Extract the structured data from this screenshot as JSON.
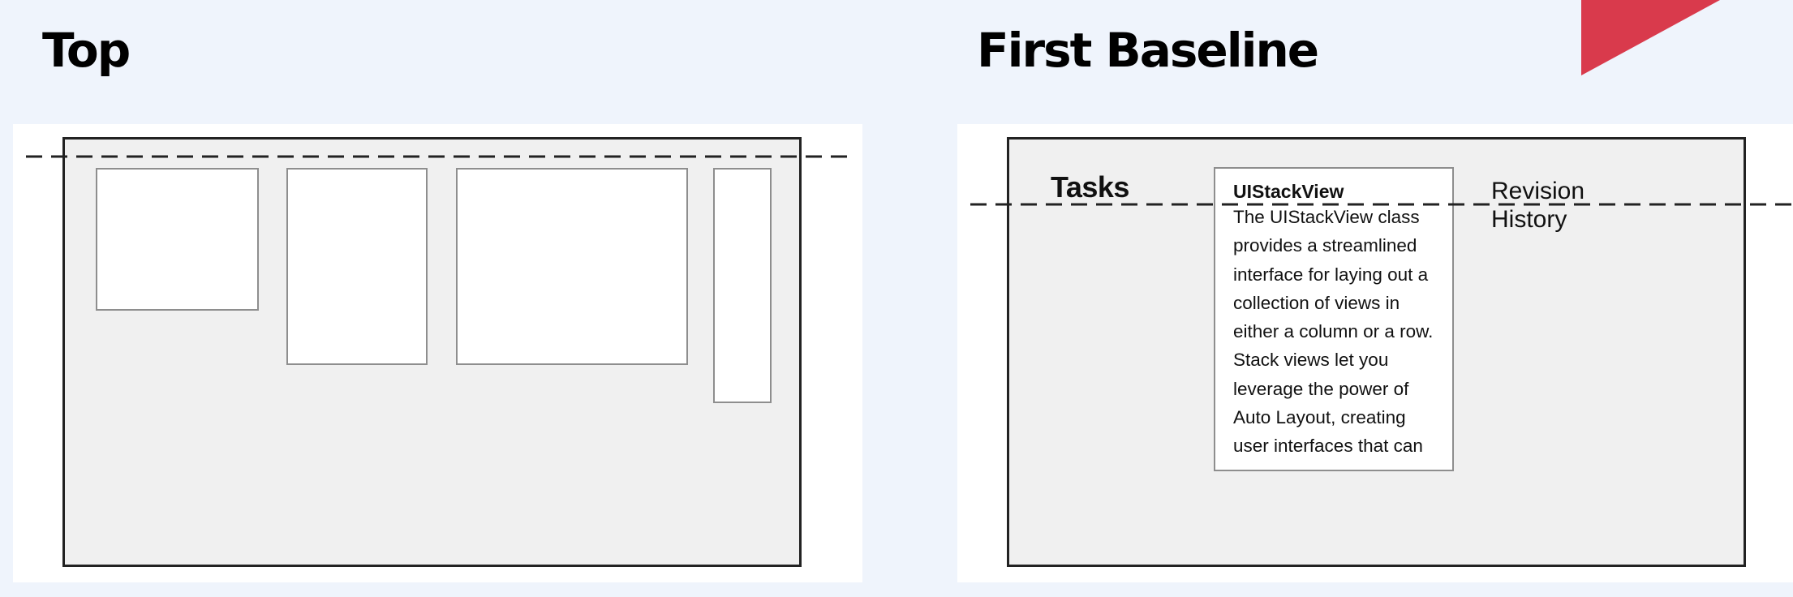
{
  "panels": [
    {
      "title": "Top",
      "alignment": "top"
    },
    {
      "title": "First Baseline",
      "alignment": "first-baseline",
      "labels": {
        "tasks": "Tasks",
        "textview_title": "UIStackView",
        "textview_body": "The UIStackView class provides a streamlined interface for laying out a collection of views in either a column or a row. Stack views let you leverage the power of Auto Layout, creating user interfaces that can",
        "revision_history": "Revision History"
      }
    }
  ],
  "colors": {
    "page_background": "#eff4fc",
    "card_background": "#ffffff",
    "stack_background": "#f0f0f0",
    "stack_border": "#222222",
    "subview_border": "#8e8e8e",
    "accent": "#d93a4c"
  }
}
